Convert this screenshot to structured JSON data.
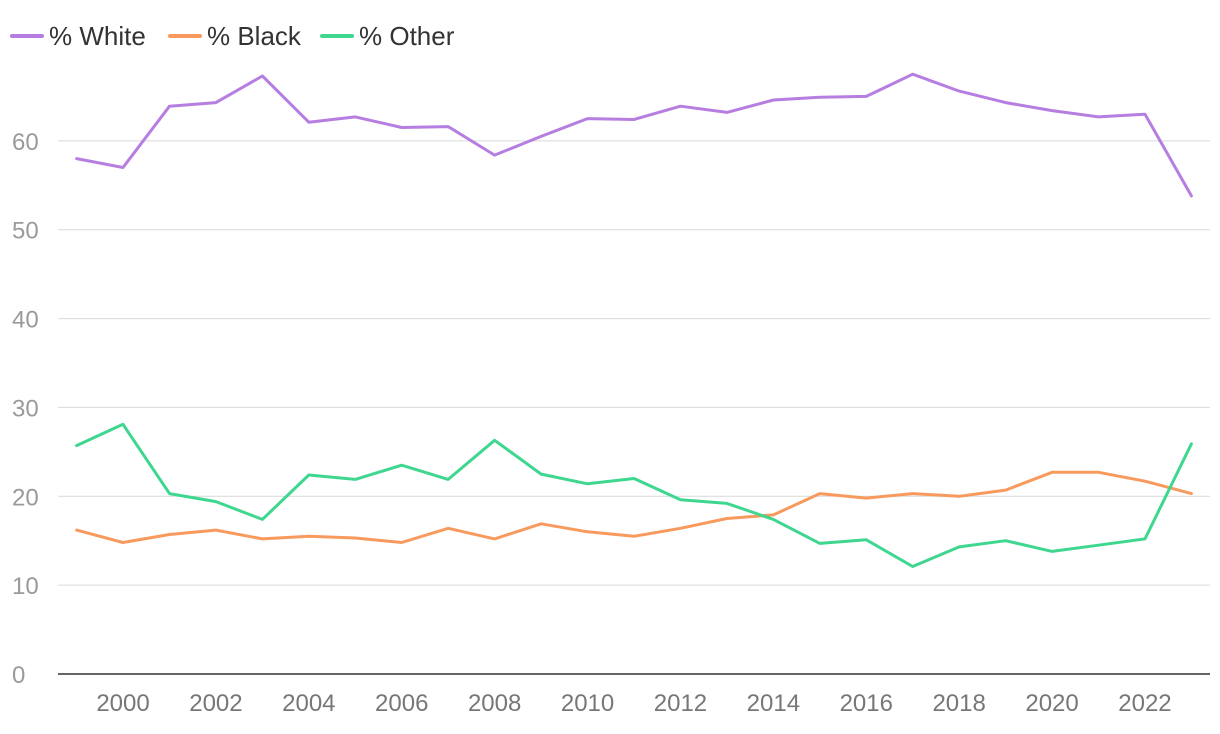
{
  "chart_data": {
    "type": "line",
    "title": "",
    "xlabel": "",
    "ylabel": "",
    "x": [
      1999,
      2000,
      2001,
      2002,
      2003,
      2004,
      2005,
      2006,
      2007,
      2008,
      2009,
      2010,
      2011,
      2012,
      2013,
      2014,
      2015,
      2016,
      2017,
      2018,
      2019,
      2020,
      2021,
      2022,
      2023
    ],
    "ylim": [
      0,
      70
    ],
    "xlim": [
      1998.6,
      2023.4
    ],
    "y_ticks": [
      0,
      10,
      20,
      30,
      40,
      50,
      60
    ],
    "y_tick_labels": [
      "0",
      "10",
      "20",
      "30",
      "40",
      "50",
      "60"
    ],
    "x_ticks": [
      2000,
      2002,
      2004,
      2006,
      2008,
      2010,
      2012,
      2014,
      2016,
      2018,
      2020,
      2022
    ],
    "x_tick_labels": [
      "2000",
      "2002",
      "2004",
      "2006",
      "2008",
      "2010",
      "2012",
      "2014",
      "2016",
      "2018",
      "2020",
      "2022"
    ],
    "grid": true,
    "legend_position": "top-left",
    "series": [
      {
        "name": "% White",
        "color": "#b57ee0",
        "values": [
          58.0,
          57.0,
          63.9,
          64.3,
          67.3,
          62.1,
          62.7,
          61.5,
          61.6,
          58.4,
          60.5,
          62.5,
          62.4,
          63.9,
          63.2,
          64.6,
          64.9,
          65.0,
          67.5,
          65.6,
          64.3,
          63.4,
          62.7,
          63.0,
          53.8
        ]
      },
      {
        "name": "% Black",
        "color": "#f89a5e",
        "values": [
          16.2,
          14.8,
          15.7,
          16.2,
          15.2,
          15.5,
          15.3,
          14.8,
          16.4,
          15.2,
          16.9,
          16.0,
          15.5,
          16.4,
          17.5,
          17.9,
          20.3,
          19.8,
          20.3,
          20.0,
          20.7,
          22.7,
          22.7,
          21.7,
          20.3
        ]
      },
      {
        "name": "% Other",
        "color": "#3fd68f",
        "values": [
          25.7,
          28.1,
          20.3,
          19.4,
          17.4,
          22.4,
          21.9,
          23.5,
          21.9,
          26.3,
          22.5,
          21.4,
          22.0,
          19.6,
          19.2,
          17.4,
          14.7,
          15.1,
          12.1,
          14.3,
          15.0,
          13.8,
          14.5,
          15.2,
          25.9
        ]
      }
    ]
  }
}
